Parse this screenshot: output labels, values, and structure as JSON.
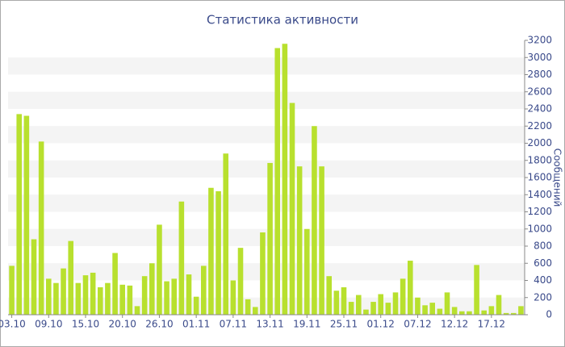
{
  "chart_data": {
    "type": "bar",
    "title": "Статистика активности",
    "y_label": "Сообщений",
    "categories": [
      "03.10",
      null,
      null,
      null,
      null,
      "09.10",
      null,
      null,
      null,
      null,
      "15.10",
      null,
      null,
      null,
      null,
      "20.10",
      null,
      null,
      null,
      null,
      "26.10",
      null,
      null,
      null,
      null,
      "01.11",
      null,
      null,
      null,
      null,
      "07.11",
      null,
      null,
      null,
      null,
      "13.11",
      null,
      null,
      null,
      null,
      "19.11",
      null,
      null,
      null,
      null,
      "25.11",
      null,
      null,
      null,
      null,
      "01.12",
      null,
      null,
      null,
      null,
      "07.12",
      null,
      null,
      null,
      null,
      "12.12",
      null,
      null,
      null,
      null,
      "17.12",
      null,
      null,
      null,
      null
    ],
    "values": [
      570,
      2340,
      2320,
      880,
      2020,
      420,
      370,
      540,
      860,
      370,
      460,
      490,
      320,
      370,
      720,
      350,
      340,
      100,
      450,
      600,
      1050,
      390,
      420,
      1320,
      470,
      210,
      570,
      1480,
      1440,
      1880,
      400,
      780,
      180,
      90,
      960,
      1770,
      3110,
      3160,
      2470,
      1730,
      1000,
      2200,
      1730,
      450,
      280,
      320,
      150,
      230,
      60,
      150,
      240,
      140,
      260,
      420,
      630,
      200,
      110,
      140,
      70,
      260,
      90,
      40,
      40,
      580,
      50,
      100,
      230,
      20,
      20,
      100
    ],
    "color": "#b8e02e",
    "ylim": [
      0,
      3200
    ],
    "yticks": [
      0,
      200,
      400,
      600,
      800,
      1000,
      1200,
      1400,
      1600,
      1800,
      2000,
      2200,
      2400,
      2600,
      2800,
      3000,
      3200
    ],
    "grid": true
  }
}
